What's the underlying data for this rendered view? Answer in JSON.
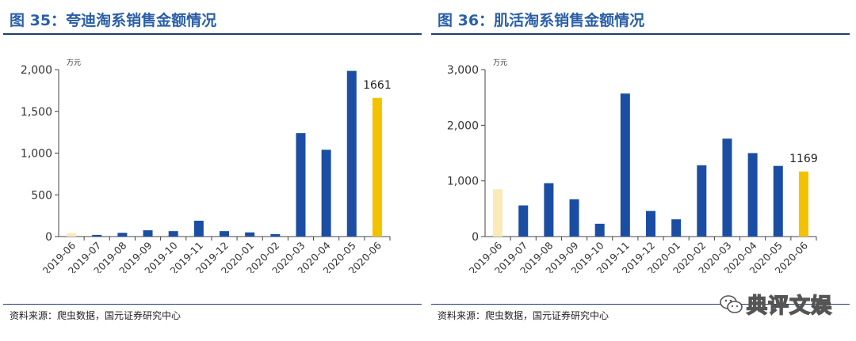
{
  "charts": [
    {
      "fig_number": "图 35：",
      "fig_title": "夸迪淘系销售金额情况",
      "source": "资料来源：爬虫数据，国元证券研究中心",
      "chart_data": {
        "type": "bar",
        "title": "夸迪淘系销售金额情况",
        "ylabel": "万元",
        "xlabel": "",
        "ylim": [
          0,
          2000
        ],
        "yticks": [
          0,
          500,
          1000,
          1500,
          2000
        ],
        "ytick_labels": [
          "0",
          "500",
          "1,000",
          "1,500",
          "2,000"
        ],
        "grid": false,
        "categories": [
          "2019-06",
          "2019-07",
          "2019-08",
          "2019-09",
          "2019-10",
          "2019-11",
          "2019-12",
          "2020-01",
          "2020-02",
          "2020-03",
          "2020-04",
          "2020-05",
          "2020-06"
        ],
        "values": [
          40,
          20,
          45,
          75,
          65,
          190,
          65,
          50,
          30,
          1240,
          1040,
          1985,
          1661
        ],
        "colors": [
          "#fbe9b8",
          "#1b4ea3",
          "#1b4ea3",
          "#1b4ea3",
          "#1b4ea3",
          "#1b4ea3",
          "#1b4ea3",
          "#1b4ea3",
          "#1b4ea3",
          "#1b4ea3",
          "#1b4ea3",
          "#1b4ea3",
          "#f2c200"
        ],
        "data_labels": [
          {
            "index": 12,
            "text": "1661"
          }
        ]
      }
    },
    {
      "fig_number": "图 36：",
      "fig_title": "肌活淘系销售金额情况",
      "source": "资料来源：爬虫数据，国元证券研究中心",
      "chart_data": {
        "type": "bar",
        "title": "肌活淘系销售金额情况",
        "ylabel": "万元",
        "xlabel": "",
        "ylim": [
          0,
          3000
        ],
        "yticks": [
          0,
          1000,
          2000,
          3000
        ],
        "ytick_labels": [
          "0",
          "1,000",
          "2,000",
          "3,000"
        ],
        "grid": false,
        "categories": [
          "2019-06",
          "2019-07",
          "2019-08",
          "2019-09",
          "2019-10",
          "2019-11",
          "2019-12",
          "2020-01",
          "2020-02",
          "2020-03",
          "2020-04",
          "2020-05",
          "2020-06"
        ],
        "values": [
          850,
          560,
          960,
          670,
          230,
          2570,
          460,
          310,
          1280,
          1760,
          1500,
          1270,
          1169
        ],
        "colors": [
          "#fbe9b8",
          "#1b4ea3",
          "#1b4ea3",
          "#1b4ea3",
          "#1b4ea3",
          "#1b4ea3",
          "#1b4ea3",
          "#1b4ea3",
          "#1b4ea3",
          "#1b4ea3",
          "#1b4ea3",
          "#1b4ea3",
          "#f2c200"
        ],
        "data_labels": [
          {
            "index": 12,
            "text": "1169"
          }
        ]
      }
    }
  ],
  "watermark": {
    "icon": "wechat-icon",
    "text": "典评文娱"
  }
}
